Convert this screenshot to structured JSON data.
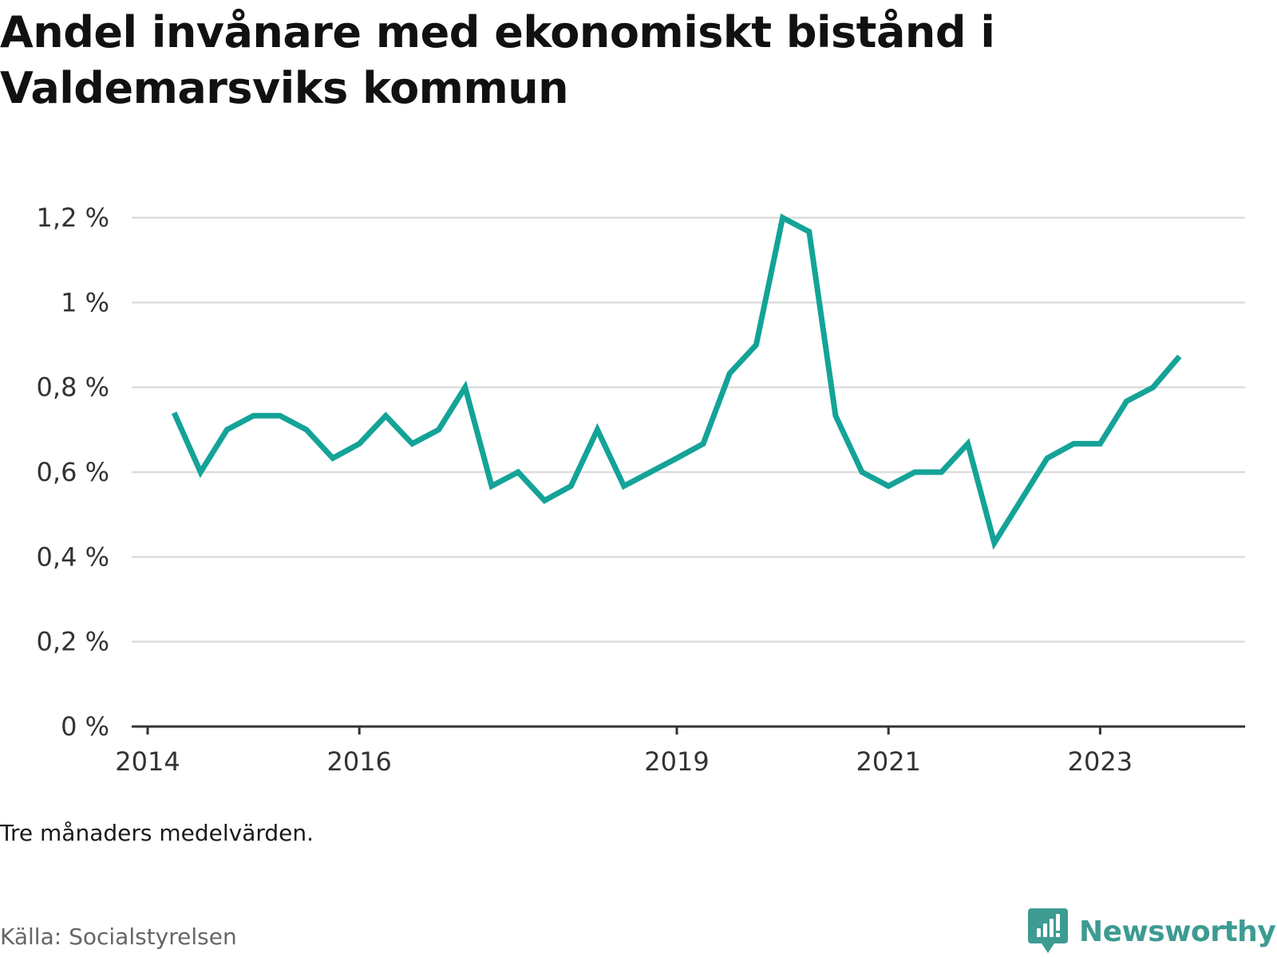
{
  "title": "Andel invånare med ekonomiskt bistånd i Valdemarsviks kommun",
  "note": "Tre månaders medelvärden.",
  "source": "Källa: Socialstyrelsen",
  "brand": {
    "name": "Newsworthy",
    "icon": "bar-chart-speech-bubble-icon",
    "color": "#3d9b92"
  },
  "chart_data": {
    "type": "line",
    "title": "Andel invånare med ekonomiskt bistånd i Valdemarsviks kommun",
    "xlabel": "",
    "ylabel": "",
    "x_ticks": [
      "2014",
      "2016",
      "2019",
      "2021",
      "2023"
    ],
    "y_ticks": [
      "0 %",
      "0,2 %",
      "0,4 %",
      "0,6 %",
      "0,8 %",
      "1 %",
      "1,2 %"
    ],
    "ylim": [
      0,
      1.2
    ],
    "grid": "horizontal",
    "legend": "none",
    "color": "#14a398",
    "series": [
      {
        "x": [
          "2014-04",
          "2014-07",
          "2014-10",
          "2015-01",
          "2015-04",
          "2015-07",
          "2015-10",
          "2016-01",
          "2016-04",
          "2016-07",
          "2016-10",
          "2017-01",
          "2017-04",
          "2017-07",
          "2017-10",
          "2018-01",
          "2018-04",
          "2018-07",
          "2018-10",
          "2019-01",
          "2019-04",
          "2019-07",
          "2019-10",
          "2020-01",
          "2020-04",
          "2020-07",
          "2020-10",
          "2021-01",
          "2021-04",
          "2021-07",
          "2021-10",
          "2022-01",
          "2022-04",
          "2022-07",
          "2022-10",
          "2023-01",
          "2023-04",
          "2023-07",
          "2023-10"
        ],
        "values": [
          0.74,
          0.6,
          0.7,
          0.733,
          0.733,
          0.7,
          0.633,
          0.667,
          0.733,
          0.667,
          0.7,
          0.8,
          0.567,
          0.6,
          0.533,
          0.567,
          0.7,
          0.567,
          0.6,
          0.633,
          0.667,
          0.833,
          0.9,
          1.2,
          1.167,
          0.733,
          0.6,
          0.567,
          0.6,
          0.6,
          0.667,
          0.433,
          0.533,
          0.633,
          0.667,
          0.667,
          0.767,
          0.8,
          0.873
        ]
      }
    ]
  }
}
